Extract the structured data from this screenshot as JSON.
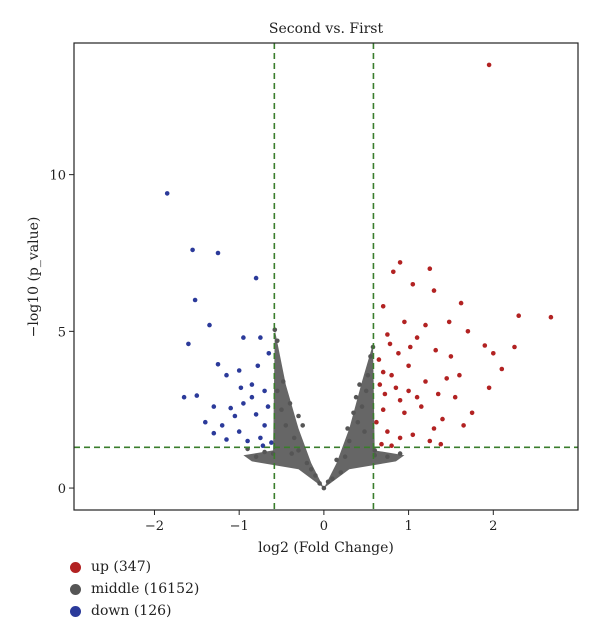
{
  "chart_data": {
    "type": "scatter",
    "title": "Second vs. First",
    "xlabel": "log2 (Fold Change)",
    "ylabel": "−log10 (p_value)",
    "xlim": [
      -2.95,
      3.0
    ],
    "ylim": [
      -0.7,
      14.2
    ],
    "x_ticks": [
      -2,
      -1,
      0,
      1,
      2
    ],
    "y_ticks": [
      0,
      5,
      10
    ],
    "thresholds": {
      "fold_change_x": [
        -0.585,
        0.585
      ],
      "p_value_y": 1.3
    },
    "colors": {
      "up": "#b22222",
      "middle": "#555555",
      "down": "#2b3a9a",
      "threshold": "#3a7d2c"
    },
    "grid": false,
    "legend_position": "bottom-left",
    "series": [
      {
        "key": "up",
        "name": "up (347)",
        "points": [
          [
            1.95,
            13.5
          ],
          [
            1.25,
            7.0
          ],
          [
            0.9,
            7.2
          ],
          [
            0.82,
            6.9
          ],
          [
            1.05,
            6.5
          ],
          [
            1.3,
            6.3
          ],
          [
            1.62,
            5.9
          ],
          [
            2.68,
            5.45
          ],
          [
            2.3,
            5.5
          ],
          [
            0.7,
            5.8
          ],
          [
            1.2,
            5.2
          ],
          [
            1.48,
            5.3
          ],
          [
            1.7,
            5.0
          ],
          [
            1.9,
            4.55
          ],
          [
            2.0,
            4.3
          ],
          [
            2.25,
            4.5
          ],
          [
            2.1,
            3.8
          ],
          [
            1.95,
            3.2
          ],
          [
            1.5,
            4.2
          ],
          [
            1.1,
            4.8
          ],
          [
            0.95,
            5.3
          ],
          [
            0.75,
            4.9
          ],
          [
            0.65,
            4.1
          ],
          [
            0.8,
            3.6
          ],
          [
            1.0,
            3.9
          ],
          [
            1.2,
            3.4
          ],
          [
            1.35,
            3.0
          ],
          [
            1.55,
            2.9
          ],
          [
            1.75,
            2.4
          ],
          [
            1.65,
            2.0
          ],
          [
            1.4,
            2.2
          ],
          [
            1.15,
            2.6
          ],
          [
            0.9,
            2.8
          ],
          [
            0.7,
            2.5
          ],
          [
            0.62,
            2.1
          ],
          [
            0.75,
            1.8
          ],
          [
            0.9,
            1.6
          ],
          [
            1.05,
            1.7
          ],
          [
            1.25,
            1.5
          ],
          [
            1.38,
            1.4
          ],
          [
            0.68,
            1.4
          ],
          [
            0.8,
            1.35
          ],
          [
            0.66,
            3.3
          ],
          [
            0.72,
            3.0
          ],
          [
            0.85,
            3.2
          ],
          [
            1.0,
            3.1
          ],
          [
            1.1,
            2.9
          ],
          [
            0.95,
            2.4
          ],
          [
            1.3,
            1.9
          ],
          [
            0.88,
            4.3
          ],
          [
            0.78,
            4.6
          ],
          [
            1.6,
            3.6
          ],
          [
            1.45,
            3.5
          ],
          [
            1.32,
            4.4
          ],
          [
            1.02,
            4.5
          ],
          [
            0.7,
            3.7
          ]
        ]
      },
      {
        "key": "middle",
        "name": "middle (16152)",
        "points": [
          [
            -0.3,
            1.2
          ],
          [
            -0.35,
            1.6
          ],
          [
            -0.45,
            2.0
          ],
          [
            -0.5,
            2.5
          ],
          [
            -0.55,
            3.1
          ],
          [
            -0.4,
            2.7
          ],
          [
            -0.2,
            0.8
          ],
          [
            0.0,
            0.0
          ],
          [
            0.1,
            0.3
          ],
          [
            0.25,
            1.0
          ],
          [
            0.3,
            1.5
          ],
          [
            0.4,
            2.1
          ],
          [
            0.45,
            2.6
          ],
          [
            0.5,
            3.1
          ],
          [
            0.52,
            3.6
          ],
          [
            0.55,
            4.2
          ],
          [
            0.58,
            4.5
          ],
          [
            0.6,
            1.2
          ],
          [
            0.75,
            1.0
          ],
          [
            -0.6,
            1.1
          ],
          [
            -0.8,
            1.0
          ],
          [
            0.2,
            0.5
          ],
          [
            -0.15,
            0.6
          ],
          [
            0.35,
            2.4
          ],
          [
            -0.25,
            2.0
          ],
          [
            0.48,
            1.8
          ],
          [
            -0.55,
            4.7
          ],
          [
            -0.58,
            5.05
          ],
          [
            -0.38,
            1.1
          ],
          [
            0.15,
            0.9
          ],
          [
            -0.1,
            0.4
          ],
          [
            0.05,
            0.2
          ],
          [
            -0.05,
            0.15
          ],
          [
            0.28,
            1.9
          ],
          [
            -0.3,
            2.3
          ],
          [
            0.42,
            3.3
          ],
          [
            -0.48,
            3.4
          ],
          [
            0.38,
            2.9
          ],
          [
            0.6,
            1.05
          ],
          [
            -0.7,
            1.15
          ],
          [
            -0.9,
            1.25
          ],
          [
            0.9,
            1.1
          ]
        ]
      },
      {
        "key": "down",
        "name": "down (126)",
        "points": [
          [
            -1.85,
            9.4
          ],
          [
            -1.55,
            7.6
          ],
          [
            -1.25,
            7.5
          ],
          [
            -0.8,
            6.7
          ],
          [
            -1.52,
            6.0
          ],
          [
            -1.35,
            5.2
          ],
          [
            -0.95,
            4.8
          ],
          [
            -0.75,
            4.8
          ],
          [
            -1.6,
            4.6
          ],
          [
            -0.65,
            4.3
          ],
          [
            -1.25,
            3.95
          ],
          [
            -1.15,
            3.6
          ],
          [
            -1.0,
            3.75
          ],
          [
            -0.85,
            3.3
          ],
          [
            -0.7,
            3.1
          ],
          [
            -1.5,
            2.95
          ],
          [
            -1.65,
            2.9
          ],
          [
            -1.3,
            2.6
          ],
          [
            -1.1,
            2.55
          ],
          [
            -0.95,
            2.7
          ],
          [
            -0.8,
            2.35
          ],
          [
            -0.7,
            2.0
          ],
          [
            -1.4,
            2.1
          ],
          [
            -1.2,
            2.0
          ],
          [
            -1.0,
            1.8
          ],
          [
            -0.9,
            1.5
          ],
          [
            -0.75,
            1.6
          ],
          [
            -1.3,
            1.75
          ],
          [
            -1.05,
            2.3
          ],
          [
            -0.62,
            1.45
          ],
          [
            -0.85,
            2.9
          ],
          [
            -1.15,
            1.55
          ],
          [
            -0.98,
            3.2
          ],
          [
            -0.78,
            3.9
          ],
          [
            -0.66,
            2.6
          ],
          [
            -0.72,
            1.35
          ]
        ]
      }
    ]
  }
}
